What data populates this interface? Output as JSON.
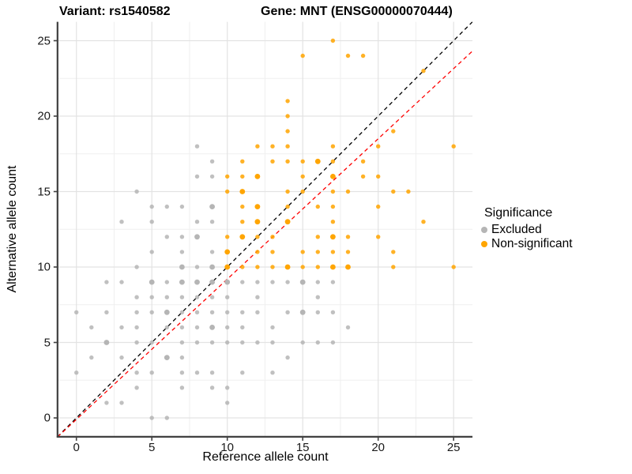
{
  "title_left": "Variant: rs1540582",
  "title_right": "Gene: MNT (ENSG00000070444)",
  "x_axis": {
    "label": "Reference allele count",
    "ticks": [
      0,
      5,
      10,
      15,
      20,
      25
    ],
    "tick_labels": [
      "0",
      "5",
      "10",
      "15",
      "20",
      "25"
    ],
    "range": [
      -1.25,
      26.25
    ],
    "minor_ticks": [
      2.5,
      7.5,
      12.5,
      17.5,
      22.5
    ]
  },
  "y_axis": {
    "label": "Alternative allele count",
    "ticks": [
      0,
      5,
      10,
      15,
      20,
      25
    ],
    "tick_labels": [
      "0",
      "5",
      "10",
      "15",
      "20",
      "25"
    ],
    "range": [
      -1.25,
      26.25
    ],
    "minor_ticks": [
      2.5,
      7.5,
      12.5,
      17.5,
      22.5
    ]
  },
  "legend": {
    "title": "Significance",
    "entries": [
      {
        "label": "Excluded",
        "color": "#b5b5b5"
      },
      {
        "label": "Non-significant",
        "color": "#ffa500"
      }
    ]
  },
  "colors": {
    "excluded": "#b5b5b5",
    "non_significant": "#ffa500",
    "identity_line": "#000000",
    "fit_line": "#ff0000",
    "grid_major": "#e3e3e3",
    "grid_minor": "#efefef",
    "axis": "#404040"
  },
  "chart_data": {
    "type": "scatter",
    "title": "Variant: rs1540582   Gene: MNT (ENSG00000070444)",
    "xlabel": "Reference allele count",
    "ylabel": "Alternative allele count",
    "xlim": [
      -1.25,
      26.25
    ],
    "ylim": [
      -1.25,
      26.25
    ],
    "grid": true,
    "legend_position": "right",
    "series": [
      {
        "name": "Excluded",
        "color": "#b5b5b5",
        "points": [
          [
            8,
            18,
            1
          ],
          [
            9,
            17,
            1
          ],
          [
            8,
            16,
            1
          ],
          [
            9,
            16,
            1
          ],
          [
            4,
            15,
            1
          ],
          [
            5,
            14,
            1
          ],
          [
            6,
            14,
            1
          ],
          [
            7,
            14,
            1
          ],
          [
            9,
            14,
            2
          ],
          [
            3,
            13,
            1
          ],
          [
            5,
            13,
            1
          ],
          [
            8,
            13,
            1
          ],
          [
            9,
            13,
            1
          ],
          [
            6,
            12,
            1
          ],
          [
            7,
            12,
            1
          ],
          [
            8,
            12,
            2
          ],
          [
            5,
            11,
            1
          ],
          [
            7,
            11,
            1
          ],
          [
            9,
            11,
            1
          ],
          [
            4,
            10,
            1
          ],
          [
            7,
            10,
            2
          ],
          [
            8,
            10,
            1
          ],
          [
            9,
            10,
            2
          ],
          [
            2,
            9,
            1
          ],
          [
            3,
            9,
            1
          ],
          [
            5,
            9,
            2
          ],
          [
            6,
            9,
            1
          ],
          [
            7,
            9,
            2
          ],
          [
            8,
            9,
            2
          ],
          [
            9,
            9,
            2
          ],
          [
            10,
            9,
            2
          ],
          [
            11,
            9,
            1
          ],
          [
            12,
            9,
            1
          ],
          [
            13,
            9,
            1
          ],
          [
            14,
            9,
            1
          ],
          [
            15,
            9,
            2
          ],
          [
            16,
            9,
            1
          ],
          [
            17,
            9,
            1
          ],
          [
            4,
            8,
            1
          ],
          [
            5,
            8,
            1
          ],
          [
            6,
            8,
            1
          ],
          [
            7,
            8,
            1
          ],
          [
            8,
            8,
            1
          ],
          [
            9,
            8,
            1
          ],
          [
            10,
            8,
            1
          ],
          [
            12,
            8,
            1
          ],
          [
            16,
            8,
            1
          ],
          [
            0,
            7,
            1
          ],
          [
            2,
            7,
            1
          ],
          [
            4,
            7,
            1
          ],
          [
            5,
            7,
            1
          ],
          [
            6,
            7,
            2
          ],
          [
            7,
            7,
            1
          ],
          [
            8,
            7,
            1
          ],
          [
            9,
            7,
            1
          ],
          [
            10,
            7,
            1
          ],
          [
            11,
            7,
            1
          ],
          [
            12,
            7,
            1
          ],
          [
            14,
            7,
            1
          ],
          [
            15,
            7,
            2
          ],
          [
            16,
            7,
            1
          ],
          [
            17,
            7,
            1
          ],
          [
            1,
            6,
            1
          ],
          [
            3,
            6,
            1
          ],
          [
            4,
            6,
            1
          ],
          [
            6,
            6,
            1
          ],
          [
            7,
            6,
            1
          ],
          [
            8,
            6,
            1
          ],
          [
            9,
            6,
            2
          ],
          [
            10,
            6,
            1
          ],
          [
            11,
            6,
            1
          ],
          [
            13,
            6,
            1
          ],
          [
            18,
            6,
            1
          ],
          [
            2,
            5,
            2
          ],
          [
            4,
            5,
            1
          ],
          [
            5,
            5,
            1
          ],
          [
            7,
            5,
            1
          ],
          [
            8,
            5,
            1
          ],
          [
            9,
            5,
            1
          ],
          [
            10,
            5,
            1
          ],
          [
            11,
            5,
            1
          ],
          [
            12,
            5,
            1
          ],
          [
            13,
            5,
            1
          ],
          [
            15,
            5,
            1
          ],
          [
            16,
            5,
            1
          ],
          [
            17,
            5,
            1
          ],
          [
            1,
            4,
            1
          ],
          [
            3,
            4,
            1
          ],
          [
            6,
            4,
            2
          ],
          [
            7,
            4,
            1
          ],
          [
            14,
            4,
            1
          ],
          [
            0,
            3,
            1
          ],
          [
            4,
            3,
            1
          ],
          [
            5,
            3,
            1
          ],
          [
            7,
            3,
            1
          ],
          [
            8,
            3,
            1
          ],
          [
            9,
            3,
            1
          ],
          [
            11,
            3,
            1
          ],
          [
            13,
            3,
            1
          ],
          [
            4,
            2,
            1
          ],
          [
            7,
            2,
            1
          ],
          [
            9,
            2,
            1
          ],
          [
            10,
            2,
            1
          ],
          [
            2,
            1,
            1
          ],
          [
            3,
            1,
            1
          ],
          [
            10,
            1,
            1
          ],
          [
            5,
            0,
            1
          ],
          [
            6,
            0,
            1
          ]
        ]
      },
      {
        "name": "Non-significant",
        "color": "#ffa500",
        "points": [
          [
            17,
            25,
            1
          ],
          [
            15,
            24,
            1
          ],
          [
            18,
            24,
            1
          ],
          [
            19,
            24,
            1
          ],
          [
            23,
            23,
            1
          ],
          [
            14,
            21,
            1
          ],
          [
            14,
            20,
            1
          ],
          [
            14,
            19,
            1
          ],
          [
            21,
            19,
            1
          ],
          [
            12,
            18,
            1
          ],
          [
            13,
            18,
            1
          ],
          [
            14,
            18,
            1
          ],
          [
            17,
            18,
            1
          ],
          [
            20,
            18,
            1
          ],
          [
            25,
            18,
            1
          ],
          [
            11,
            17,
            1
          ],
          [
            13,
            17,
            1
          ],
          [
            14,
            17,
            1
          ],
          [
            15,
            17,
            1
          ],
          [
            16,
            17,
            2
          ],
          [
            17,
            17,
            1
          ],
          [
            19,
            17,
            1
          ],
          [
            10,
            16,
            1
          ],
          [
            11,
            16,
            1
          ],
          [
            12,
            16,
            2
          ],
          [
            15,
            16,
            1
          ],
          [
            17,
            16,
            2
          ],
          [
            19,
            16,
            1
          ],
          [
            20,
            16,
            1
          ],
          [
            10,
            15,
            1
          ],
          [
            11,
            15,
            2
          ],
          [
            14,
            15,
            1
          ],
          [
            15,
            15,
            1
          ],
          [
            17,
            15,
            1
          ],
          [
            18,
            15,
            1
          ],
          [
            21,
            15,
            1
          ],
          [
            22,
            15,
            1
          ],
          [
            11,
            14,
            1
          ],
          [
            12,
            14,
            2
          ],
          [
            14,
            14,
            1
          ],
          [
            16,
            14,
            1
          ],
          [
            17,
            14,
            1
          ],
          [
            20,
            14,
            1
          ],
          [
            11,
            13,
            1
          ],
          [
            12,
            13,
            2
          ],
          [
            14,
            13,
            2
          ],
          [
            17,
            13,
            1
          ],
          [
            23,
            13,
            1
          ],
          [
            10,
            12,
            1
          ],
          [
            11,
            12,
            2
          ],
          [
            12,
            12,
            1
          ],
          [
            13,
            12,
            1
          ],
          [
            16,
            12,
            1
          ],
          [
            17,
            12,
            2
          ],
          [
            18,
            12,
            1
          ],
          [
            20,
            12,
            1
          ],
          [
            10,
            11,
            2
          ],
          [
            12,
            11,
            1
          ],
          [
            13,
            11,
            1
          ],
          [
            15,
            11,
            1
          ],
          [
            16,
            11,
            1
          ],
          [
            17,
            11,
            1
          ],
          [
            18,
            11,
            1
          ],
          [
            21,
            11,
            1
          ],
          [
            10,
            10,
            2
          ],
          [
            11,
            10,
            1
          ],
          [
            12,
            10,
            1
          ],
          [
            13,
            10,
            1
          ],
          [
            14,
            10,
            2
          ],
          [
            15,
            10,
            1
          ],
          [
            16,
            10,
            1
          ],
          [
            17,
            10,
            2
          ],
          [
            18,
            10,
            2
          ],
          [
            21,
            10,
            1
          ],
          [
            25,
            10,
            1
          ]
        ]
      }
    ],
    "lines": [
      {
        "name": "identity",
        "color": "#000000",
        "dashed": true,
        "slope": 1,
        "intercept": 0
      },
      {
        "name": "fit",
        "color": "#ff0000",
        "dashed": true,
        "slope": 0.93,
        "intercept": -0.1
      }
    ]
  }
}
